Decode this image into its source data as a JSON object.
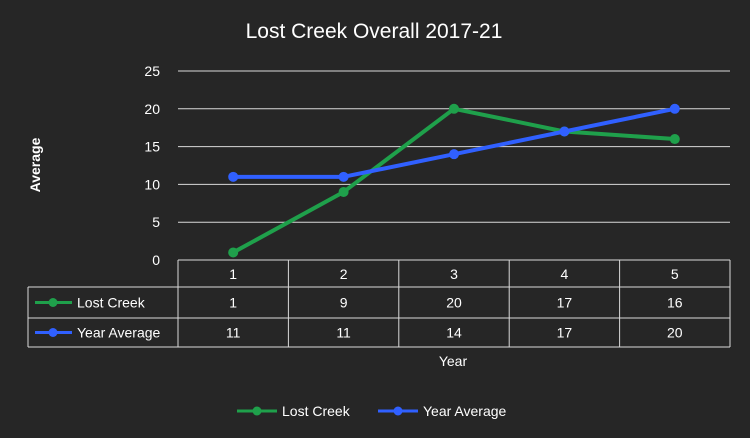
{
  "chart_data": {
    "type": "line",
    "title": "Lost Creek Overall 2017-21",
    "xlabel": "Year",
    "ylabel": "Average",
    "categories": [
      "1",
      "2",
      "3",
      "4",
      "5"
    ],
    "y_ticks": [
      "0",
      "5",
      "10",
      "15",
      "20",
      "25"
    ],
    "ylim": [
      0,
      25
    ],
    "grid": true,
    "legend": "bottom",
    "data_table": true,
    "series": [
      {
        "name": "Lost Creek",
        "values": [
          1,
          9,
          20,
          17,
          16
        ],
        "color": "#1fa04b"
      },
      {
        "name": "Year Average",
        "values": [
          11,
          11,
          14,
          17,
          20
        ],
        "color": "#3060ff"
      }
    ]
  }
}
